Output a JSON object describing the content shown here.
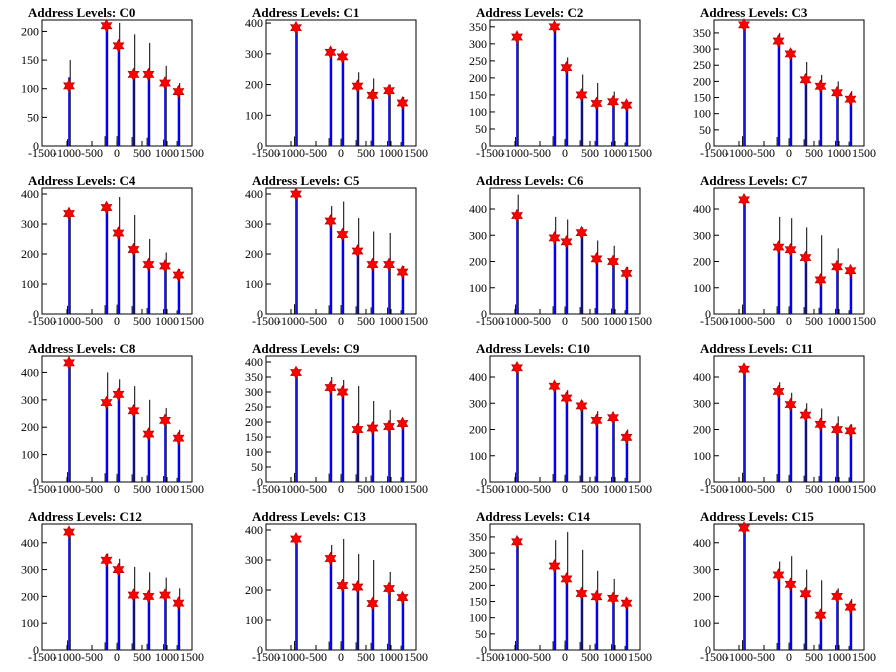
{
  "chart_data": [
    {
      "type": "bar",
      "title": "Address Levels: C0",
      "xlim": [
        -1500,
        1500
      ],
      "ylim": [
        0,
        220
      ],
      "yticks": [
        0,
        50,
        100,
        150,
        200
      ],
      "xticks": [
        -1500,
        -1000,
        -500,
        0,
        500,
        1000,
        1500
      ],
      "peaks": [
        -960,
        -210,
        30,
        330,
        630,
        960,
        1230
      ],
      "black": [
        150,
        215,
        215,
        195,
        180,
        140,
        110
      ],
      "blue": [
        120,
        205,
        175,
        120,
        120,
        105,
        95
      ],
      "markers": [
        105,
        210,
        175,
        125,
        125,
        110,
        95
      ]
    },
    {
      "type": "bar",
      "title": "Address Levels: C1",
      "xlim": [
        -1500,
        1500
      ],
      "ylim": [
        0,
        410
      ],
      "yticks": [
        0,
        100,
        200,
        300,
        400
      ],
      "xticks": [
        -1500,
        -1000,
        -500,
        0,
        500,
        1000,
        1500
      ],
      "peaks": [
        -900,
        -210,
        30,
        330,
        630,
        960,
        1230
      ],
      "black": [
        390,
        320,
        300,
        240,
        220,
        200,
        160
      ],
      "blue": [
        370,
        300,
        280,
        190,
        170,
        180,
        140
      ],
      "markers": [
        385,
        305,
        290,
        195,
        165,
        180,
        140
      ]
    },
    {
      "type": "bar",
      "title": "Address Levels: C2",
      "xlim": [
        -1500,
        1500
      ],
      "ylim": [
        0,
        370
      ],
      "yticks": [
        0,
        50,
        100,
        150,
        200,
        250,
        300,
        350
      ],
      "xticks": [
        -1500,
        -1000,
        -500,
        0,
        500,
        1000,
        1500
      ],
      "peaks": [
        -960,
        -210,
        30,
        330,
        630,
        960,
        1230
      ],
      "black": [
        330,
        360,
        260,
        210,
        185,
        160,
        130
      ],
      "blue": [
        310,
        340,
        220,
        150,
        120,
        130,
        115
      ],
      "markers": [
        320,
        350,
        230,
        150,
        125,
        130,
        120
      ]
    },
    {
      "type": "bar",
      "title": "Address Levels: C3",
      "xlim": [
        -1500,
        1500
      ],
      "ylim": [
        0,
        390
      ],
      "yticks": [
        0,
        50,
        100,
        150,
        200,
        250,
        300,
        350
      ],
      "xticks": [
        -1500,
        -1000,
        -500,
        0,
        500,
        1000,
        1500
      ],
      "peaks": [
        -900,
        -210,
        30,
        330,
        630,
        960,
        1230
      ],
      "black": [
        380,
        350,
        300,
        260,
        220,
        200,
        170
      ],
      "blue": [
        360,
        320,
        270,
        200,
        180,
        160,
        140
      ],
      "markers": [
        375,
        325,
        285,
        205,
        185,
        165,
        145
      ]
    },
    {
      "type": "bar",
      "title": "Address Levels: C4",
      "xlim": [
        -1500,
        1500
      ],
      "ylim": [
        0,
        420
      ],
      "yticks": [
        0,
        100,
        200,
        300,
        400
      ],
      "xticks": [
        -1500,
        -1000,
        -500,
        0,
        500,
        1000,
        1500
      ],
      "peaks": [
        -960,
        -210,
        30,
        330,
        630,
        960,
        1230
      ],
      "black": [
        340,
        370,
        390,
        330,
        250,
        205,
        150
      ],
      "blue": [
        320,
        350,
        260,
        200,
        160,
        150,
        130
      ],
      "markers": [
        335,
        355,
        270,
        215,
        165,
        160,
        130
      ]
    },
    {
      "type": "bar",
      "title": "Address Levels: C5",
      "xlim": [
        -1500,
        1500
      ],
      "ylim": [
        0,
        420
      ],
      "yticks": [
        0,
        100,
        200,
        300,
        400
      ],
      "xticks": [
        -1500,
        -1000,
        -500,
        0,
        500,
        1000,
        1500
      ],
      "peaks": [
        -900,
        -210,
        30,
        330,
        630,
        960,
        1230
      ],
      "black": [
        410,
        360,
        375,
        320,
        275,
        270,
        160
      ],
      "blue": [
        390,
        300,
        250,
        200,
        160,
        160,
        140
      ],
      "markers": [
        400,
        310,
        265,
        210,
        165,
        165,
        140
      ]
    },
    {
      "type": "bar",
      "title": "Address Levels: C6",
      "xlim": [
        -1500,
        1500
      ],
      "ylim": [
        0,
        480
      ],
      "yticks": [
        0,
        100,
        200,
        300,
        400
      ],
      "xticks": [
        -1500,
        -1000,
        -500,
        0,
        500,
        1000,
        1500
      ],
      "peaks": [
        -960,
        -210,
        30,
        330,
        630,
        960,
        1230
      ],
      "black": [
        455,
        370,
        360,
        330,
        280,
        260,
        180
      ],
      "blue": [
        360,
        290,
        270,
        300,
        210,
        200,
        150
      ],
      "markers": [
        375,
        290,
        275,
        310,
        210,
        200,
        155
      ]
    },
    {
      "type": "bar",
      "title": "Address Levels: C7",
      "xlim": [
        -1500,
        1500
      ],
      "ylim": [
        0,
        480
      ],
      "yticks": [
        0,
        100,
        200,
        300,
        400
      ],
      "xticks": [
        -1500,
        -1000,
        -500,
        0,
        500,
        1000,
        1500
      ],
      "peaks": [
        -900,
        -210,
        30,
        330,
        630,
        960,
        1230
      ],
      "black": [
        450,
        370,
        365,
        330,
        300,
        250,
        180
      ],
      "blue": [
        420,
        250,
        240,
        210,
        130,
        170,
        160
      ],
      "markers": [
        435,
        255,
        245,
        215,
        130,
        180,
        165
      ]
    },
    {
      "type": "bar",
      "title": "Address Levels: C8",
      "xlim": [
        -1500,
        1500
      ],
      "ylim": [
        0,
        460
      ],
      "yticks": [
        0,
        100,
        200,
        300,
        400
      ],
      "xticks": [
        -1500,
        -1000,
        -500,
        0,
        500,
        1000,
        1500
      ],
      "peaks": [
        -960,
        -210,
        30,
        330,
        630,
        960,
        1230
      ],
      "black": [
        450,
        400,
        375,
        350,
        300,
        270,
        190
      ],
      "blue": [
        420,
        280,
        310,
        250,
        170,
        220,
        160
      ],
      "markers": [
        435,
        290,
        320,
        260,
        175,
        225,
        160
      ]
    },
    {
      "type": "bar",
      "title": "Address Levels: C9",
      "xlim": [
        -1500,
        1500
      ],
      "ylim": [
        0,
        420
      ],
      "yticks": [
        0,
        50,
        100,
        150,
        200,
        250,
        300,
        350,
        400
      ],
      "xticks": [
        -1500,
        -1000,
        -500,
        0,
        500,
        1000,
        1500
      ],
      "peaks": [
        -900,
        -210,
        30,
        330,
        630,
        960,
        1230
      ],
      "black": [
        380,
        350,
        340,
        320,
        270,
        240,
        200
      ],
      "blue": [
        360,
        310,
        290,
        170,
        175,
        180,
        190
      ],
      "markers": [
        365,
        315,
        300,
        175,
        180,
        185,
        195
      ]
    },
    {
      "type": "bar",
      "title": "Address Levels: C10",
      "xlim": [
        -1500,
        1500
      ],
      "ylim": [
        0,
        480
      ],
      "yticks": [
        0,
        100,
        200,
        300,
        400
      ],
      "xticks": [
        -1500,
        -1000,
        -500,
        0,
        500,
        1000,
        1500
      ],
      "peaks": [
        -960,
        -210,
        30,
        330,
        630,
        960,
        1230
      ],
      "black": [
        450,
        380,
        350,
        310,
        270,
        240,
        200
      ],
      "blue": [
        420,
        360,
        310,
        290,
        230,
        240,
        170
      ],
      "markers": [
        435,
        365,
        320,
        290,
        235,
        245,
        170
      ]
    },
    {
      "type": "bar",
      "title": "Address Levels: C11",
      "xlim": [
        -1500,
        1500
      ],
      "ylim": [
        0,
        480
      ],
      "yticks": [
        0,
        100,
        200,
        300,
        400
      ],
      "xticks": [
        -1500,
        -1000,
        -500,
        0,
        500,
        1000,
        1500
      ],
      "peaks": [
        -900,
        -210,
        30,
        330,
        630,
        960,
        1230
      ],
      "black": [
        440,
        380,
        340,
        300,
        280,
        250,
        220
      ],
      "blue": [
        420,
        340,
        290,
        250,
        210,
        190,
        190
      ],
      "markers": [
        430,
        345,
        295,
        255,
        220,
        200,
        195
      ]
    },
    {
      "type": "bar",
      "title": "Address Levels: C12",
      "xlim": [
        -1500,
        1500
      ],
      "ylim": [
        0,
        470
      ],
      "yticks": [
        0,
        100,
        200,
        300,
        400
      ],
      "xticks": [
        -1500,
        -1000,
        -500,
        0,
        500,
        1000,
        1500
      ],
      "peaks": [
        -960,
        -210,
        30,
        330,
        630,
        960,
        1230
      ],
      "black": [
        450,
        360,
        340,
        310,
        290,
        270,
        230
      ],
      "blue": [
        430,
        330,
        290,
        200,
        200,
        200,
        170
      ],
      "markers": [
        440,
        335,
        300,
        205,
        200,
        205,
        175
      ]
    },
    {
      "type": "bar",
      "title": "Address Levels: C13",
      "xlim": [
        -1500,
        1500
      ],
      "ylim": [
        0,
        420
      ],
      "yticks": [
        0,
        100,
        200,
        300,
        400
      ],
      "xticks": [
        -1500,
        -1000,
        -500,
        0,
        500,
        1000,
        1500
      ],
      "peaks": [
        -900,
        -210,
        30,
        330,
        630,
        960,
        1230
      ],
      "black": [
        380,
        350,
        370,
        320,
        300,
        260,
        180
      ],
      "blue": [
        360,
        300,
        210,
        200,
        150,
        200,
        170
      ],
      "markers": [
        370,
        305,
        215,
        210,
        155,
        205,
        175
      ]
    },
    {
      "type": "bar",
      "title": "Address Levels: C14",
      "xlim": [
        -1500,
        1500
      ],
      "ylim": [
        0,
        390
      ],
      "yticks": [
        0,
        50,
        100,
        150,
        200,
        250,
        300,
        350
      ],
      "xticks": [
        -1500,
        -1000,
        -500,
        0,
        500,
        1000,
        1500
      ],
      "peaks": [
        -960,
        -210,
        30,
        330,
        630,
        960,
        1230
      ],
      "black": [
        350,
        340,
        365,
        310,
        245,
        220,
        160
      ],
      "blue": [
        330,
        260,
        220,
        170,
        165,
        160,
        145
      ],
      "markers": [
        335,
        260,
        220,
        175,
        165,
        160,
        145
      ]
    },
    {
      "type": "bar",
      "title": "Address Levels: C15",
      "xlim": [
        -1500,
        1500
      ],
      "ylim": [
        0,
        470
      ],
      "yticks": [
        0,
        100,
        200,
        300,
        400
      ],
      "xticks": [
        -1500,
        -1000,
        -500,
        0,
        500,
        1000,
        1500
      ],
      "peaks": [
        -900,
        -210,
        30,
        330,
        630,
        960,
        1230
      ],
      "black": [
        460,
        330,
        350,
        300,
        260,
        230,
        190
      ],
      "blue": [
        440,
        270,
        240,
        210,
        130,
        200,
        160
      ],
      "markers": [
        455,
        280,
        245,
        210,
        130,
        200,
        160
      ]
    }
  ],
  "colors": {
    "black_bars": "#000000",
    "blue_bars": "#0000ff",
    "marker": "#ff0000",
    "marker_outline": "#b00000"
  }
}
